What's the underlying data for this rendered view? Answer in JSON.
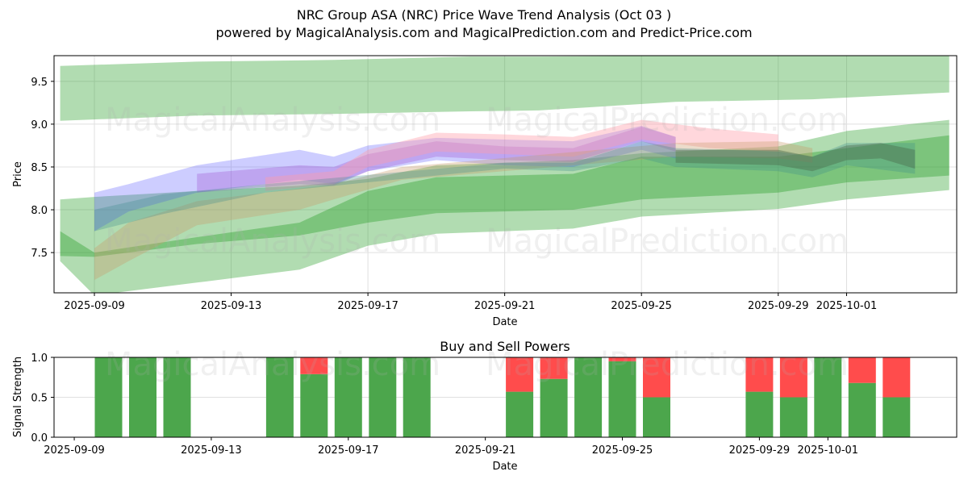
{
  "header": {
    "title": "NRC Group ASA (NRC) Price Wave Trend Analysis (Oct 03 )",
    "subtitle": "powered by MagicalAnalysis.com and MagicalPrediction.com and Predict-Price.com"
  },
  "watermarks": [
    "MagicalAnalysis.com",
    "MagicalPrediction.com"
  ],
  "colors": {
    "green": "#2ca02c",
    "buy": "#4ca64c",
    "sell": "#ff4c4c",
    "blue": "#5a5aff",
    "purple": "#a050d0",
    "pink": "#ff9aa8",
    "tan": "#c89a6a",
    "teal": "#3a8a8a",
    "darkgreen": "#4a6a4a"
  },
  "chart_data": [
    {
      "type": "area",
      "title": "",
      "xlabel": "Date",
      "ylabel": "Price",
      "ylim": [
        7.03,
        9.8
      ],
      "xlim": [
        "2025-09-07.82",
        "2025-10-04.22"
      ],
      "grid": true,
      "x_ticks": [
        "2025-09-09",
        "2025-09-13",
        "2025-09-17",
        "2025-09-21",
        "2025-09-25",
        "2025-09-29",
        "2025-10-01"
      ],
      "y_ticks": [
        7.5,
        8.0,
        8.5,
        9.0,
        9.5
      ],
      "bands": [
        {
          "name": "upper-green-band",
          "color": "green",
          "opacity": 0.37,
          "x": [
            "2025-09-08",
            "2025-09-12",
            "2025-09-16",
            "2025-09-20",
            "2025-09-22",
            "2025-09-26",
            "2025-09-30",
            "2025-10-02",
            "2025-10-04"
          ],
          "upper": [
            9.68,
            9.73,
            9.75,
            9.79,
            9.79,
            9.8,
            9.8,
            9.8,
            9.8
          ],
          "lower": [
            9.04,
            9.1,
            9.12,
            9.15,
            9.16,
            9.26,
            9.29,
            9.33,
            9.37
          ]
        },
        {
          "name": "outer-lower-green-band",
          "color": "green",
          "opacity": 0.37,
          "x": [
            "2025-09-08",
            "2025-09-09",
            "2025-09-12",
            "2025-09-15",
            "2025-09-17",
            "2025-09-19",
            "2025-09-23",
            "2025-09-25",
            "2025-09-29",
            "2025-10-01",
            "2025-10-04"
          ],
          "upper": [
            8.12,
            8.15,
            8.22,
            8.28,
            8.36,
            8.52,
            8.58,
            8.66,
            8.74,
            8.92,
            9.05
          ],
          "lower": [
            7.4,
            7.0,
            7.15,
            7.3,
            7.58,
            7.72,
            7.78,
            7.92,
            8.01,
            8.12,
            8.23
          ]
        },
        {
          "name": "inner-lower-green-band",
          "color": "green",
          "opacity": 0.4,
          "x": [
            "2025-09-08",
            "2025-09-09",
            "2025-09-12",
            "2025-09-15",
            "2025-09-17",
            "2025-09-19",
            "2025-09-23",
            "2025-09-25",
            "2025-09-29",
            "2025-10-01",
            "2025-10-04"
          ],
          "upper": [
            7.75,
            7.5,
            7.68,
            7.85,
            8.22,
            8.38,
            8.42,
            8.62,
            8.62,
            8.72,
            8.87
          ],
          "lower": [
            7.46,
            7.45,
            7.6,
            7.7,
            7.85,
            7.96,
            8.0,
            8.12,
            8.2,
            8.32,
            8.4
          ]
        },
        {
          "name": "blue-wave-band",
          "color": "blue",
          "opacity": 0.3,
          "x": [
            "2025-09-09",
            "2025-09-10",
            "2025-09-12",
            "2025-09-15",
            "2025-09-16",
            "2025-09-17",
            "2025-09-19",
            "2025-09-21",
            "2025-09-23",
            "2025-09-25",
            "2025-09-26"
          ],
          "upper": [
            8.2,
            8.3,
            8.52,
            8.7,
            8.62,
            8.75,
            8.84,
            8.82,
            8.8,
            8.98,
            8.85
          ],
          "lower": [
            7.75,
            7.98,
            8.2,
            8.35,
            8.3,
            8.45,
            8.58,
            8.52,
            8.5,
            8.7,
            8.6
          ]
        },
        {
          "name": "purple-wave-band",
          "color": "purple",
          "opacity": 0.32,
          "x": [
            "2025-09-12",
            "2025-09-15",
            "2025-09-16",
            "2025-09-17",
            "2025-09-19",
            "2025-09-21",
            "2025-09-23",
            "2025-09-25",
            "2025-09-26"
          ],
          "upper": [
            8.42,
            8.52,
            8.5,
            8.65,
            8.8,
            8.74,
            8.72,
            8.97,
            8.85
          ],
          "lower": [
            8.2,
            8.3,
            8.28,
            8.45,
            8.62,
            8.58,
            8.56,
            8.8,
            8.68
          ]
        },
        {
          "name": "pink-wave-band",
          "color": "pink",
          "opacity": 0.4,
          "x": [
            "2025-09-14",
            "2025-09-16",
            "2025-09-17",
            "2025-09-19",
            "2025-09-21",
            "2025-09-23",
            "2025-09-25",
            "2025-09-27",
            "2025-09-29"
          ],
          "upper": [
            8.38,
            8.45,
            8.7,
            8.9,
            8.88,
            8.85,
            9.05,
            8.95,
            8.88
          ],
          "lower": [
            8.22,
            8.3,
            8.5,
            8.68,
            8.65,
            8.62,
            8.82,
            8.72,
            8.68
          ]
        },
        {
          "name": "tan-wave-band",
          "color": "tan",
          "opacity": 0.35,
          "x": [
            "2025-09-09",
            "2025-09-10",
            "2025-09-12",
            "2025-09-15",
            "2025-09-16",
            "2025-09-18",
            "2025-09-26",
            "2025-09-29",
            "2025-09-30"
          ],
          "upper": [
            7.55,
            7.85,
            8.1,
            8.25,
            8.3,
            8.5,
            8.78,
            8.8,
            8.72
          ],
          "lower": [
            7.18,
            7.4,
            7.82,
            8.0,
            8.12,
            8.35,
            8.62,
            8.6,
            8.55
          ]
        },
        {
          "name": "teal-wave-band",
          "color": "teal",
          "opacity": 0.3,
          "x": [
            "2025-09-09",
            "2025-09-11",
            "2025-09-14",
            "2025-09-21",
            "2025-09-23",
            "2025-09-25",
            "2025-09-26",
            "2025-09-29",
            "2025-09-30",
            "2025-10-01",
            "2025-10-03"
          ],
          "upper": [
            8.0,
            8.18,
            8.3,
            8.55,
            8.55,
            8.8,
            8.72,
            8.68,
            8.62,
            8.78,
            8.78
          ],
          "lower": [
            7.75,
            7.95,
            8.2,
            8.48,
            8.45,
            8.6,
            8.5,
            8.45,
            8.38,
            8.52,
            8.42
          ]
        },
        {
          "name": "darkgreen-wave-band",
          "color": "darkgreen",
          "opacity": 0.42,
          "x": [
            "2025-09-26",
            "2025-09-29",
            "2025-09-30",
            "2025-10-01",
            "2025-10-02",
            "2025-10-03"
          ],
          "upper": [
            8.7,
            8.7,
            8.62,
            8.75,
            8.78,
            8.7
          ],
          "lower": [
            8.55,
            8.52,
            8.45,
            8.58,
            8.6,
            8.48
          ]
        }
      ]
    },
    {
      "type": "bar",
      "title": "Buy and Sell Powers",
      "xlabel": "Date",
      "ylabel": "Signal Strength",
      "ylim": [
        0,
        1.0
      ],
      "xlim": [
        "2025-09-08.41",
        "2025-10-04.76"
      ],
      "grid": true,
      "x_ticks": [
        "2025-09-09",
        "2025-09-13",
        "2025-09-17",
        "2025-09-21",
        "2025-09-25",
        "2025-09-29",
        "2025-10-01"
      ],
      "y_ticks": [
        0.0,
        0.5,
        1.0
      ],
      "stacked": true,
      "categories": [
        "2025-09-10",
        "2025-09-11",
        "2025-09-12",
        "2025-09-15",
        "2025-09-16",
        "2025-09-17",
        "2025-09-18",
        "2025-09-19",
        "2025-09-22",
        "2025-09-23",
        "2025-09-24",
        "2025-09-25",
        "2025-09-26",
        "2025-09-29",
        "2025-09-30",
        "2025-10-01",
        "2025-10-02",
        "2025-10-03"
      ],
      "series": [
        {
          "name": "Buy",
          "color": "buy",
          "values": [
            1.0,
            1.0,
            1.0,
            1.0,
            0.79,
            1.0,
            1.0,
            1.0,
            0.57,
            0.73,
            1.0,
            0.95,
            0.5,
            0.57,
            0.5,
            1.0,
            0.68,
            0.5
          ]
        },
        {
          "name": "Sell",
          "color": "sell",
          "values": [
            0.0,
            0.0,
            0.0,
            0.0,
            0.21,
            0.0,
            0.0,
            0.0,
            0.43,
            0.27,
            0.0,
            0.05,
            0.5,
            0.43,
            0.5,
            0.0,
            0.32,
            0.5
          ]
        }
      ]
    }
  ]
}
